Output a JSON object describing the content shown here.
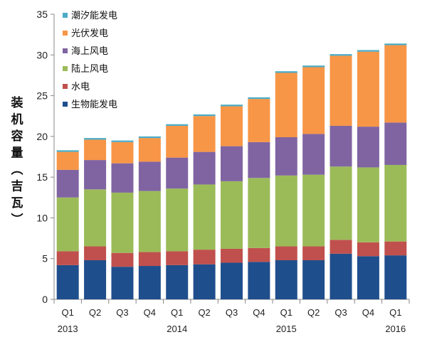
{
  "chart_data": {
    "type": "bar",
    "stacked": true,
    "ylabel": "装机容量（吉瓦）",
    "ylim": [
      0,
      35
    ],
    "yticks": [
      0,
      5,
      10,
      15,
      20,
      25,
      30,
      35
    ],
    "categories": [
      "Q1",
      "Q2",
      "Q3",
      "Q4",
      "Q1",
      "Q2",
      "Q3",
      "Q4",
      "Q1",
      "Q2",
      "Q3",
      "Q4",
      "Q1"
    ],
    "year_labels": [
      {
        "index": 0,
        "label": "2013"
      },
      {
        "index": 4,
        "label": "2014"
      },
      {
        "index": 8,
        "label": "2015"
      },
      {
        "index": 12,
        "label": "2016"
      }
    ],
    "legend_position": "top-left",
    "series": [
      {
        "name": "生物能发电",
        "color": "#1f4e8c",
        "values": [
          4.2,
          4.8,
          4.0,
          4.1,
          4.2,
          4.3,
          4.5,
          4.6,
          4.8,
          4.8,
          5.6,
          5.3,
          5.4
        ]
      },
      {
        "name": "水电",
        "color": "#c0504d",
        "values": [
          1.7,
          1.7,
          1.7,
          1.7,
          1.7,
          1.8,
          1.7,
          1.7,
          1.7,
          1.7,
          1.7,
          1.7,
          1.7
        ]
      },
      {
        "name": "陆上风电",
        "color": "#9bbb59",
        "values": [
          6.6,
          7.0,
          7.4,
          7.5,
          7.7,
          8.0,
          8.3,
          8.6,
          8.7,
          8.8,
          9.0,
          9.2,
          9.4
        ]
      },
      {
        "name": "海上风电",
        "color": "#8064a2",
        "values": [
          3.4,
          3.6,
          3.6,
          3.6,
          3.8,
          4.0,
          4.3,
          4.4,
          4.7,
          5.0,
          5.0,
          5.0,
          5.2
        ]
      },
      {
        "name": "光伏发电",
        "color": "#f79646",
        "values": [
          2.2,
          2.5,
          2.6,
          2.9,
          3.9,
          4.4,
          4.9,
          5.3,
          7.9,
          8.2,
          8.6,
          9.2,
          9.5
        ]
      },
      {
        "name": "潮汐能发电",
        "color": "#4bacc6",
        "values": [
          0.2,
          0.2,
          0.2,
          0.2,
          0.2,
          0.2,
          0.2,
          0.2,
          0.2,
          0.2,
          0.2,
          0.2,
          0.2
        ]
      }
    ]
  }
}
